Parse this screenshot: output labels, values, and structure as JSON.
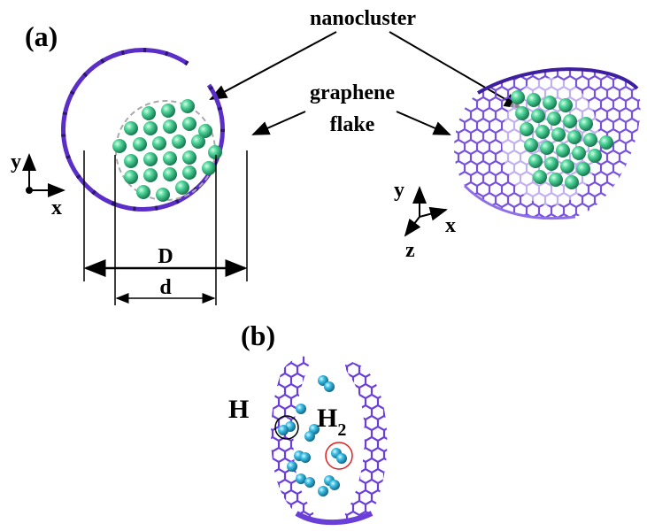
{
  "panels": [
    {
      "label": "(a)"
    },
    {
      "label": "(b)"
    }
  ],
  "annotations": {
    "nanocluster": "nanocluster",
    "graphene_flake": [
      "graphene",
      "flake"
    ]
  },
  "axes_left": {
    "y": "y",
    "x": "x"
  },
  "axes_right": {
    "y": "y",
    "x": "x",
    "z": "z"
  },
  "dimensions": {
    "outer": "D",
    "inner": "d"
  },
  "species": {
    "atom": "H",
    "molecule": {
      "base": "H",
      "subscript": "2"
    }
  }
}
